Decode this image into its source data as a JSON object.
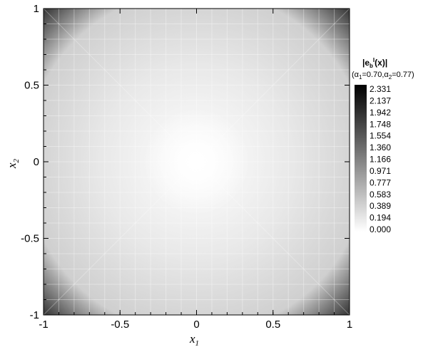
{
  "chart_data": {
    "type": "heatmap",
    "title": "",
    "xlabel": "x",
    "xlabel_sub": "1",
    "ylabel": "x",
    "ylabel_sub": "2",
    "xlim": [
      -1,
      1
    ],
    "ylim": [
      -1,
      1
    ],
    "x_ticks": [
      -1,
      -0.5,
      0,
      0.5,
      1
    ],
    "x_tick_labels": [
      "-1",
      "-0.5",
      "0",
      "0.5",
      "1"
    ],
    "y_ticks": [
      -1,
      -0.5,
      0,
      0.5,
      1
    ],
    "y_tick_labels": [
      "-1",
      "-0.5",
      "0",
      "0.5",
      "1"
    ],
    "colormap": "grayscale (white = 0, black = max)",
    "field_min": 0.0,
    "field_max_visible": 1.36,
    "legend": {
      "title": "|e_b^I(x)|",
      "title_main": "|e",
      "title_sub": "b",
      "title_sup": "I",
      "title_tail": "(x)|",
      "params": "(α1=0.70,α2=0.77)",
      "param_a1_pre": "(α",
      "param_a1_sub": "1",
      "param_a1_val": "=0.70,α",
      "param_a2_sub": "2",
      "param_a2_val": "=0.77)",
      "levels": [
        "2.331",
        "2.137",
        "1.942",
        "1.748",
        "1.554",
        "1.360",
        "1.166",
        "0.971",
        "0.777",
        "0.583",
        "0.389",
        "0.194",
        "0.000"
      ],
      "level_values": [
        2.331,
        2.137,
        1.942,
        1.748,
        1.554,
        1.36,
        1.166,
        0.971,
        0.777,
        0.583,
        0.389,
        0.194,
        0.0
      ],
      "placement": "right"
    }
  }
}
